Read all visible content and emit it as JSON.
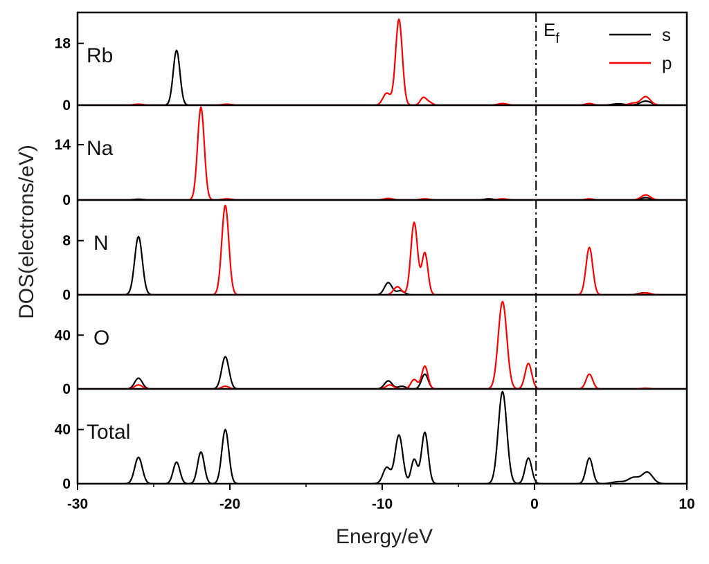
{
  "chart_data": {
    "type": "line",
    "title": "",
    "xlabel": "Energy/eV",
    "ylabel": "DOS(electrons/eV)",
    "xlim": [
      -30,
      10
    ],
    "x_ticks": [
      -30,
      -20,
      -10,
      0,
      10
    ],
    "x_tick_labels": [
      "-30",
      "-20",
      "-10",
      "0",
      "10"
    ],
    "fermi_level": {
      "x": 0.1,
      "label": "E",
      "label_sub": "f"
    },
    "legend": {
      "position": "top-right",
      "entries": [
        {
          "name": "s",
          "color": "#000000"
        },
        {
          "name": "p",
          "color": "#ff0000"
        }
      ]
    },
    "panels": [
      {
        "label": "Rb",
        "ylim": [
          0,
          27
        ],
        "y_ticks": [
          0,
          18
        ],
        "y_tick_labels": [
          "0",
          "18"
        ],
        "series": [
          {
            "name": "s",
            "color": "#000000",
            "peaks": [
              [
                -23.5,
                16,
                0.22
              ],
              [
                5.5,
                0.4,
                0.4
              ],
              [
                7.3,
                1.2,
                0.35
              ]
            ]
          },
          {
            "name": "p",
            "color": "#ff0000",
            "peaks": [
              [
                -9.7,
                3.5,
                0.25
              ],
              [
                -8.9,
                25,
                0.22
              ],
              [
                -7.3,
                2.2,
                0.2
              ],
              [
                -6.9,
                0.8,
                0.2
              ],
              [
                -26.0,
                0.3,
                0.3
              ],
              [
                -20.2,
                0.3,
                0.3
              ],
              [
                -2.1,
                0.5,
                0.3
              ],
              [
                3.6,
                0.5,
                0.25
              ],
              [
                6.5,
                0.6,
                0.3
              ],
              [
                7.3,
                2.5,
                0.3
              ]
            ]
          }
        ]
      },
      {
        "label": "Na",
        "ylim": [
          0,
          24
        ],
        "y_ticks": [
          0,
          14
        ],
        "y_tick_labels": [
          "0",
          "14"
        ],
        "series": [
          {
            "name": "s",
            "color": "#000000",
            "peaks": [
              [
                -26.0,
                0.2,
                0.3
              ],
              [
                -3.0,
                0.3,
                0.3
              ],
              [
                7.3,
                0.6,
                0.3
              ]
            ]
          },
          {
            "name": "p",
            "color": "#ff0000",
            "peaks": [
              [
                -21.9,
                23.5,
                0.22
              ],
              [
                -20.2,
                0.3,
                0.3
              ],
              [
                -9.6,
                0.4,
                0.3
              ],
              [
                -7.2,
                0.3,
                0.3
              ],
              [
                -2.1,
                0.3,
                0.3
              ],
              [
                3.6,
                0.3,
                0.25
              ],
              [
                7.3,
                1.3,
                0.3
              ]
            ]
          }
        ]
      },
      {
        "label": "N",
        "ylim": [
          0,
          14
        ],
        "y_ticks": [
          0,
          8
        ],
        "y_tick_labels": [
          "0",
          "8"
        ],
        "series": [
          {
            "name": "s",
            "color": "#000000",
            "peaks": [
              [
                -26.0,
                8.6,
                0.25
              ],
              [
                -9.6,
                1.8,
                0.25
              ],
              [
                -8.8,
                0.6,
                0.25
              ],
              [
                7.2,
                0.3,
                0.35
              ]
            ]
          },
          {
            "name": "p",
            "color": "#ff0000",
            "peaks": [
              [
                -20.3,
                13.2,
                0.23
              ],
              [
                -9.0,
                1.2,
                0.25
              ],
              [
                -7.9,
                10.7,
                0.22
              ],
              [
                -7.2,
                6.2,
                0.2
              ],
              [
                3.6,
                7.0,
                0.22
              ],
              [
                7.3,
                0.3,
                0.3
              ]
            ]
          }
        ]
      },
      {
        "label": "O",
        "ylim": [
          0,
          70
        ],
        "y_ticks": [
          0,
          40
        ],
        "y_tick_labels": [
          "0",
          "40"
        ],
        "series": [
          {
            "name": "s",
            "color": "#000000",
            "peaks": [
              [
                -26.0,
                8,
                0.25
              ],
              [
                -20.3,
                24,
                0.24
              ],
              [
                -9.6,
                6,
                0.25
              ],
              [
                -8.7,
                2,
                0.25
              ],
              [
                -7.2,
                11,
                0.22
              ]
            ]
          },
          {
            "name": "p",
            "color": "#ff0000",
            "peaks": [
              [
                -26.0,
                3,
                0.25
              ],
              [
                -20.3,
                2,
                0.24
              ],
              [
                -9.5,
                3,
                0.25
              ],
              [
                -7.9,
                7,
                0.22
              ],
              [
                -7.2,
                17,
                0.2
              ],
              [
                -2.1,
                65,
                0.28
              ],
              [
                -0.4,
                19,
                0.22
              ],
              [
                3.6,
                11,
                0.22
              ],
              [
                7.3,
                0.5,
                0.3
              ]
            ]
          }
        ]
      },
      {
        "label": "Total",
        "ylim": [
          0,
          70
        ],
        "y_ticks": [
          0,
          40
        ],
        "y_tick_labels": [
          "0",
          "40"
        ],
        "series": [
          {
            "name": "total",
            "color": "#000000",
            "peaks": [
              [
                -26.0,
                19.5,
                0.25
              ],
              [
                -23.5,
                16,
                0.22
              ],
              [
                -21.9,
                23.5,
                0.22
              ],
              [
                -20.3,
                40,
                0.23
              ],
              [
                -9.7,
                12,
                0.25
              ],
              [
                -8.9,
                36,
                0.25
              ],
              [
                -7.9,
                18,
                0.2
              ],
              [
                -7.2,
                38,
                0.22
              ],
              [
                -2.1,
                68,
                0.28
              ],
              [
                -0.4,
                19,
                0.22
              ],
              [
                3.6,
                19,
                0.22
              ],
              [
                5.5,
                1.5,
                0.4
              ],
              [
                6.5,
                4.5,
                0.35
              ],
              [
                7.4,
                8.5,
                0.35
              ]
            ]
          }
        ]
      }
    ]
  }
}
